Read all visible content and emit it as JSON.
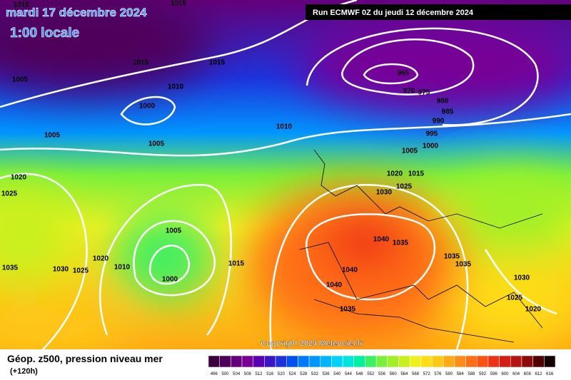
{
  "header": {
    "date": "mardi 17 décembre 2024",
    "time": "1:00 locale",
    "run": "Run ECMWF 0Z du jeudi 12 décembre 2024"
  },
  "isobar_labels": [
    "1015",
    "1015",
    "1015",
    "1015",
    "1005",
    "1010",
    "1000",
    "1005",
    "1005",
    "1010",
    "965",
    "970",
    "975",
    "980",
    "985",
    "990",
    "995",
    "1000",
    "1005",
    "1020",
    "1015",
    "1025",
    "1030",
    "1020",
    "1025",
    "1005",
    "1040",
    "1035",
    "1035",
    "1035",
    "1020",
    "1030",
    "1025",
    "1010",
    "1015",
    "1000",
    "1040",
    "1040",
    "1030",
    "1025",
    "1020",
    "1035",
    "1035"
  ],
  "copyright": "Copyright 2024 Meteociel.fr",
  "footer": {
    "title": "Géop. z500, pression niveau mer",
    "lead": "(+120h)"
  },
  "colorbar": {
    "labels": [
      496,
      500,
      504,
      508,
      512,
      516,
      520,
      524,
      528,
      532,
      536,
      540,
      544,
      548,
      552,
      556,
      560,
      564,
      568,
      572,
      576,
      580,
      584,
      588,
      592,
      596,
      600,
      604,
      608,
      612,
      616
    ],
    "colors": [
      "#3c003c",
      "#50005a",
      "#64007a",
      "#780096",
      "#5a00b4",
      "#3c14c8",
      "#1e32dc",
      "#0050f0",
      "#0078ff",
      "#0096ff",
      "#00b4ff",
      "#00d2ff",
      "#00e6dc",
      "#00f0a0",
      "#3cf064",
      "#78f03c",
      "#a0f028",
      "#c8f01e",
      "#f0f01e",
      "#ffdc14",
      "#ffc814",
      "#ffaa14",
      "#ff8c14",
      "#ff6e14",
      "#ff5014",
      "#f03214",
      "#d21e14",
      "#b41414",
      "#8c0a0a",
      "#500000",
      "#140000"
    ]
  }
}
